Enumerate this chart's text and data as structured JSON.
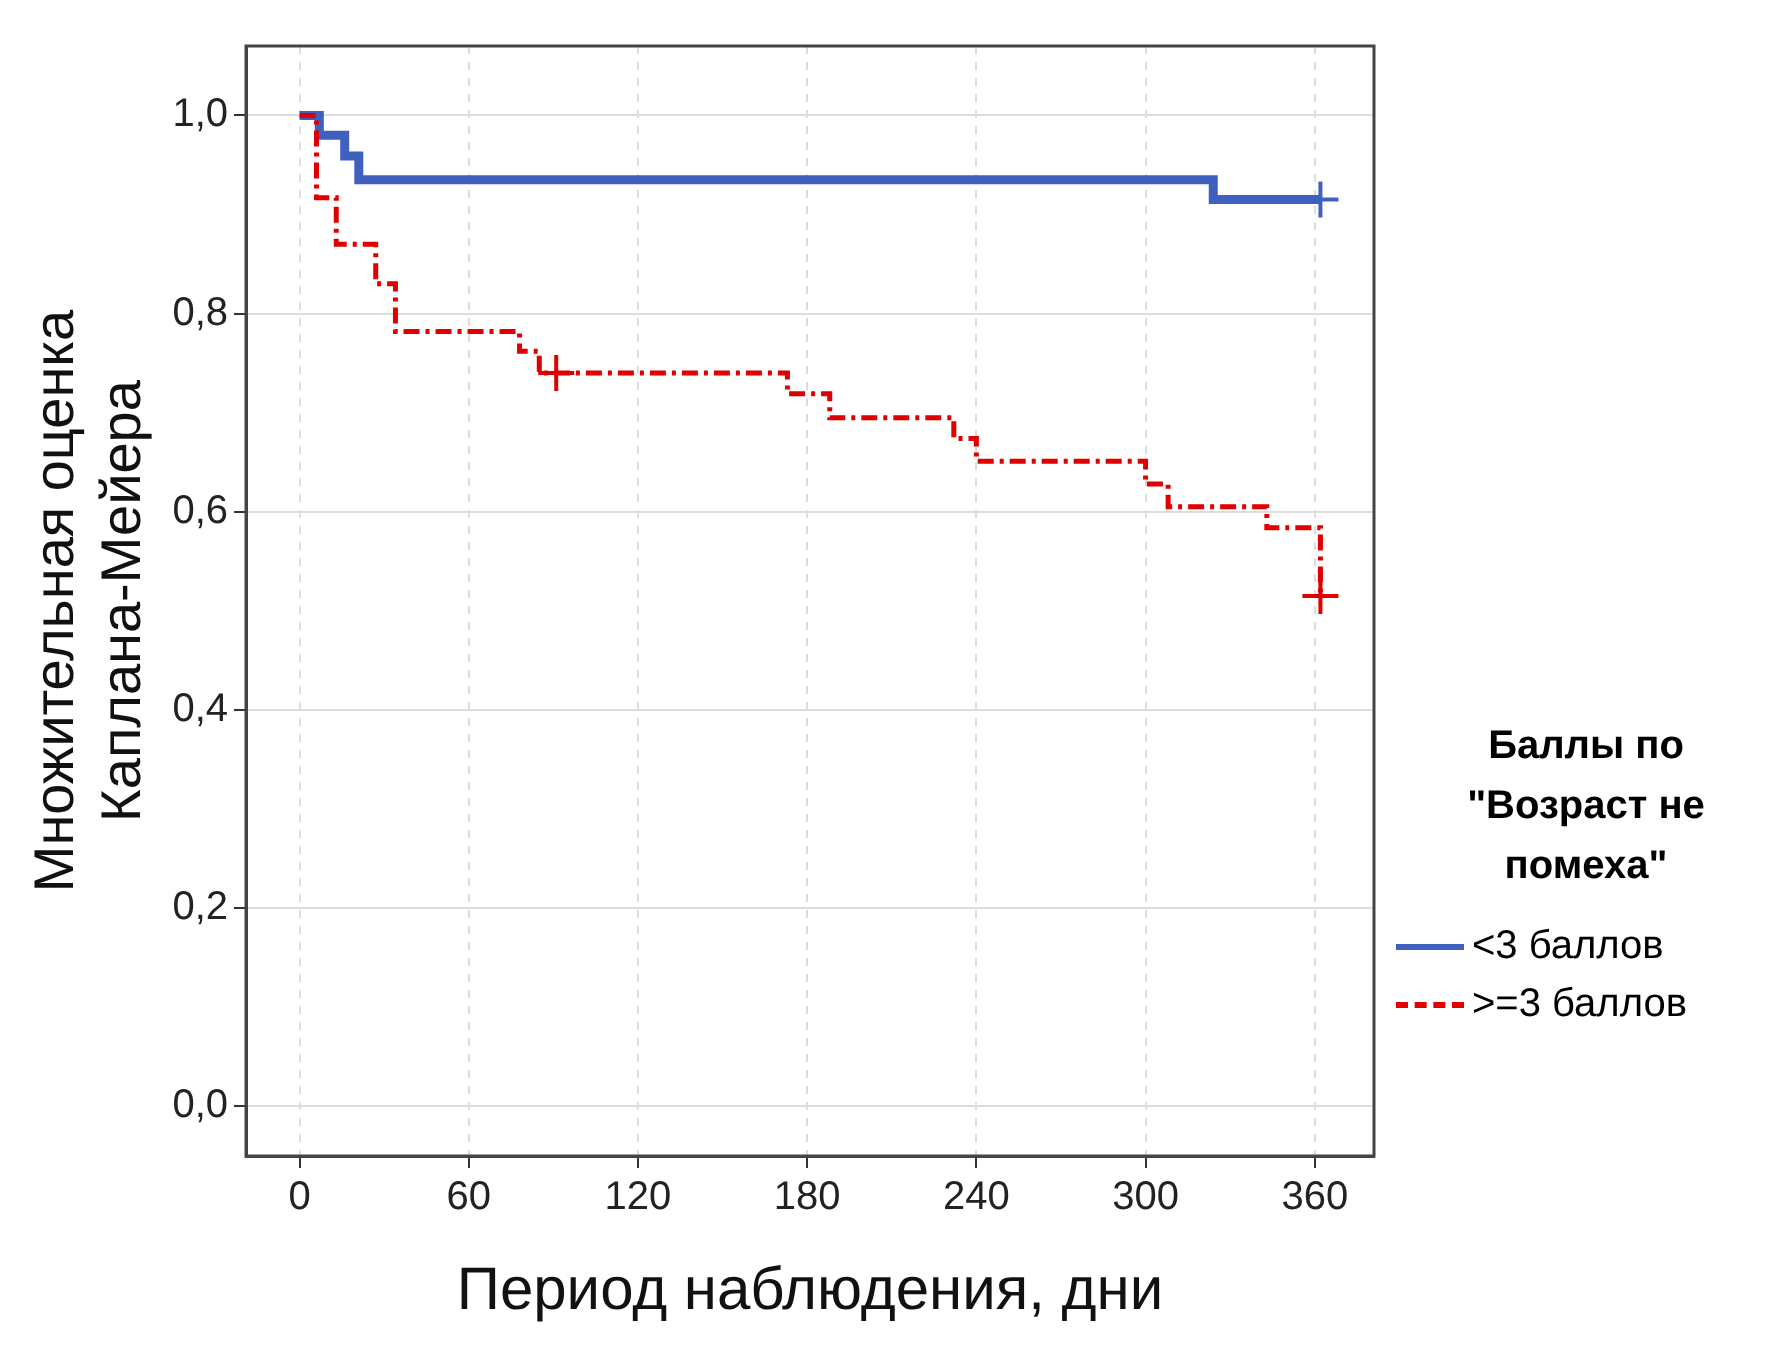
{
  "chart_data": {
    "type": "step",
    "xlabel": "Период наблюдения, дни",
    "ylabel": "Множительная оценка Каплана-Мейера",
    "legend_title": "Баллы по \"Возраст не помеха\"",
    "legend": "right",
    "xlim": [
      -19,
      381
    ],
    "xticks": [
      0,
      60,
      120,
      180,
      240,
      300,
      360
    ],
    "ylim": [
      -0.05,
      1.07
    ],
    "yticks": [
      {
        "value": 0,
        "label": "0,0"
      },
      {
        "value": 0.2,
        "label": "0,2"
      },
      {
        "value": 0.4,
        "label": "0,4"
      },
      {
        "value": 0.6,
        "label": "0,6"
      },
      {
        "value": 0.8,
        "label": "0,8"
      },
      {
        "value": 1,
        "label": "1,0"
      }
    ],
    "grid": true,
    "series": [
      {
        "name": "<3 баллов",
        "color": "#4060c0",
        "line_style": "solid",
        "x": [
          0,
          7,
          16,
          21,
          324,
          362
        ],
        "values": [
          1,
          0.98,
          0.959,
          0.935,
          0.915,
          0.915
        ]
      },
      {
        "name": ">=3 баллов",
        "color": "#e00000",
        "line_style": "dashed",
        "x": [
          0,
          6,
          13,
          27,
          34,
          78,
          85,
          173,
          188,
          232,
          240,
          300,
          308,
          343,
          362
        ],
        "values": [
          1,
          0.917,
          0.87,
          0.83,
          0.782,
          0.762,
          0.74,
          0.719,
          0.695,
          0.674,
          0.651,
          0.628,
          0.605,
          0.584,
          0.515
        ]
      },
      {
        "type": "scatter",
        "marker": "cross",
        "color": "#4060c0",
        "x": [
          362
        ],
        "values": [
          0.915
        ]
      },
      {
        "type": "scatter",
        "marker": "cross",
        "color": "#e00000",
        "x": [
          91,
          362
        ],
        "values": [
          0.74,
          0.515
        ]
      }
    ]
  }
}
